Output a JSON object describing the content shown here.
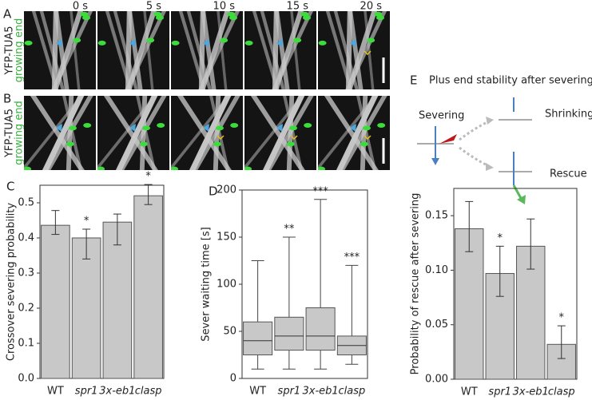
{
  "image_rows": [
    {
      "label": "A",
      "ylabel": "YFP-TUA5",
      "ylabel2": "growing end"
    },
    {
      "label": "B",
      "ylabel": "YFP-TUA5",
      "ylabel2": "growing end"
    }
  ],
  "times": [
    "0 s",
    "5 s",
    "10 s",
    "15 s",
    "20 s"
  ],
  "diagram": {
    "label": "E",
    "title": "Plus end stability after severing",
    "severing": "Severing",
    "shrinking": "Shrinking",
    "rescue": "Rescue"
  },
  "chart_data": [
    {
      "type": "bar",
      "panel": "C",
      "ylabel": "Crossover severing probability",
      "categories": [
        "WT",
        "spr1",
        "3x-eb1",
        "clasp"
      ],
      "values": [
        0.436,
        0.4,
        0.445,
        0.52
      ],
      "errors": [
        [
          0.41,
          0.478
        ],
        [
          0.34,
          0.425
        ],
        [
          0.38,
          0.468
        ],
        [
          0.495,
          0.552
        ]
      ],
      "annotations": [
        null,
        "*",
        null,
        "*"
      ],
      "color": "#c8c8c8",
      "ylim": [
        0,
        0.55
      ],
      "yticks": [
        {
          "value": 0,
          "label": "0.0"
        },
        0.1,
        0.2,
        0.3,
        0.4,
        0.5
      ]
    },
    {
      "type": "box",
      "panel": "D",
      "ylabel": "Sever waiting time [s]",
      "categories": [
        "WT",
        "spr1",
        "3x-eb1",
        "clasp"
      ],
      "whisker_low": [
        10,
        10,
        10,
        15
      ],
      "q1": [
        25,
        30,
        30,
        25
      ],
      "median": [
        40,
        45,
        45,
        35
      ],
      "q3": [
        60,
        65,
        75,
        45
      ],
      "whisker_high": [
        125,
        150,
        190,
        120
      ],
      "annotations": [
        null,
        "**",
        "***",
        "***"
      ],
      "color": "#c8c8c8",
      "ylim": [
        0,
        200
      ],
      "yticks": [
        0,
        50,
        100,
        150,
        200
      ]
    },
    {
      "type": "bar",
      "ylabel": "Probability of rescue after severing",
      "categories": [
        "WT",
        "spr1",
        "3x-eb1",
        "clasp"
      ],
      "values": [
        0.138,
        0.097,
        0.122,
        0.032
      ],
      "errors": [
        [
          0.117,
          0.163
        ],
        [
          0.076,
          0.122
        ],
        [
          0.101,
          0.147
        ],
        [
          0.019,
          0.049
        ]
      ],
      "annotations": [
        null,
        "*",
        null,
        "*"
      ],
      "color": "#c8c8c8",
      "ylim": [
        0,
        0.175
      ],
      "yticks": [
        {
          "value": 0,
          "label": "0.00"
        },
        0.05,
        {
          "value": 0.1,
          "label": "0.10"
        },
        0.15
      ]
    }
  ]
}
